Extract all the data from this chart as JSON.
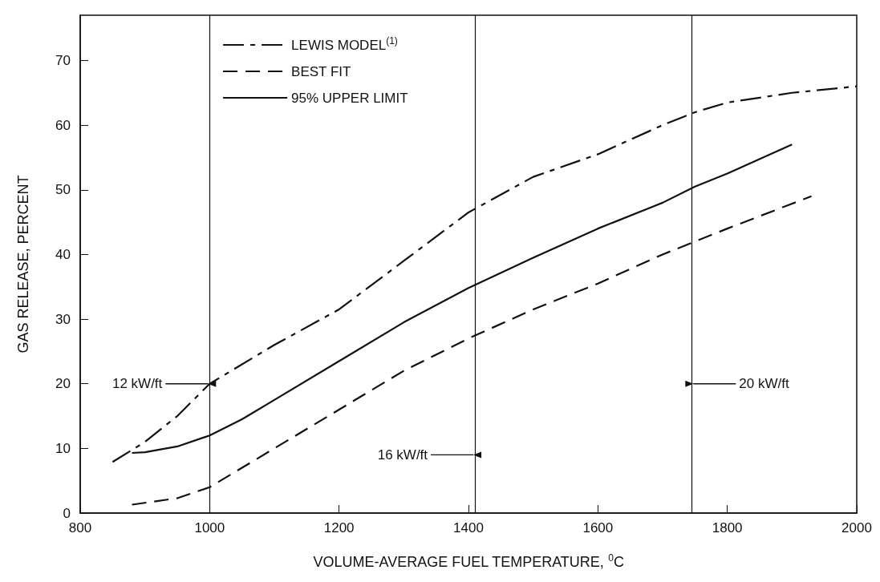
{
  "chart_data": {
    "type": "line",
    "xlabel": "VOLUME-AVERAGE FUEL TEMPERATURE, $^{0}$C",
    "ylabel": "GAS RELEASE, PERCENT",
    "xlim": [
      800,
      2000
    ],
    "xticks": [
      800,
      1000,
      1200,
      1400,
      1600,
      1800,
      2000
    ],
    "ylim": [
      0,
      77
    ],
    "yticks": [
      0,
      10,
      20,
      30,
      40,
      50,
      60,
      70
    ],
    "grid": false,
    "legend": "top left",
    "marker": "none",
    "series": [
      {
        "name": "LEWIS MODEL$^{(1)}$",
        "color": "#111111",
        "line_style": "dashdot",
        "x": [
          850,
          900,
          950,
          1000,
          1100,
          1200,
          1300,
          1400,
          1500,
          1600,
          1700,
          1750,
          1800,
          1900,
          2000
        ],
        "values": [
          7.9,
          11,
          15,
          20,
          26,
          31.5,
          39,
          46.5,
          52,
          55.5,
          60,
          62,
          63.5,
          65,
          66
        ]
      },
      {
        "name": "BEST FIT",
        "color": "#111111",
        "line_style": "dashed",
        "x": [
          880,
          950,
          1000,
          1050,
          1100,
          1200,
          1300,
          1400,
          1500,
          1600,
          1700,
          1800,
          1930
        ],
        "values": [
          1.3,
          2.3,
          4,
          7,
          10,
          16,
          22,
          27,
          31.5,
          35.5,
          40,
          44,
          49
        ]
      },
      {
        "name": "95% UPPER LIMIT",
        "color": "#111111",
        "line_style": "solid",
        "x": [
          880,
          900,
          950,
          1000,
          1050,
          1100,
          1200,
          1300,
          1400,
          1500,
          1600,
          1700,
          1750,
          1800,
          1900
        ],
        "values": [
          9.3,
          9.4,
          10.3,
          12,
          14.5,
          17.5,
          23.5,
          29.5,
          34.8,
          39.5,
          44,
          48,
          50.5,
          52.5,
          57
        ]
      }
    ],
    "ref_lines": [
      {
        "axis": "x",
        "value": 1000,
        "label": "12 kW/ft"
      },
      {
        "axis": "x",
        "value": 1410,
        "label": "16 kW/ft"
      },
      {
        "axis": "x",
        "value": 1745,
        "label": "20 kW/ft"
      }
    ]
  }
}
